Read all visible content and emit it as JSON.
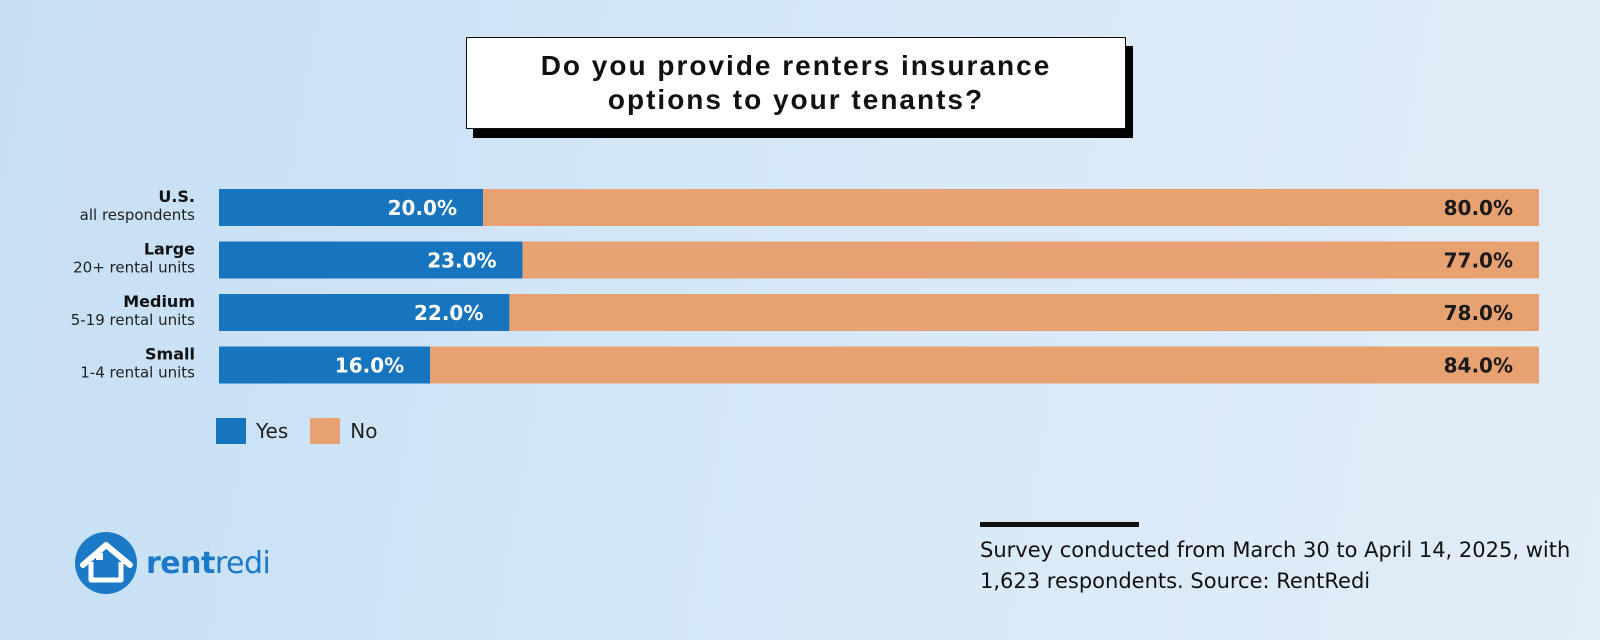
{
  "title": "Do you provide renters insurance options to your tenants?",
  "chart_data": {
    "type": "bar",
    "orientation": "horizontal",
    "stacked": true,
    "categories": [
      {
        "label": "U.S.",
        "sublabel": "all respondents"
      },
      {
        "label": "Large",
        "sublabel": "20+ rental units"
      },
      {
        "label": "Medium",
        "sublabel": "5-19 rental units"
      },
      {
        "label": "Small",
        "sublabel": "1-4 rental units"
      }
    ],
    "series": [
      {
        "name": "Yes",
        "color": "#1774be",
        "values": [
          20.0,
          23.0,
          22.0,
          16.0
        ],
        "labels": [
          "20.0%",
          "23.0%",
          "22.0%",
          "16.0%"
        ]
      },
      {
        "name": "No",
        "color": "#e8a272",
        "values": [
          80.0,
          77.0,
          78.0,
          84.0
        ],
        "labels": [
          "80.0%",
          "77.0%",
          "78.0%",
          "84.0%"
        ]
      }
    ],
    "xlim": [
      0,
      100
    ],
    "legend_position": "bottom-left",
    "grid": false
  },
  "legend": {
    "yes": "Yes",
    "no": "No"
  },
  "logo": {
    "part1": "rent",
    "part2": "redi",
    "icon": "house-icon"
  },
  "source": "Survey conducted from March 30 to April 14, 2025, with 1,623 respondents. Source: RentRedi"
}
